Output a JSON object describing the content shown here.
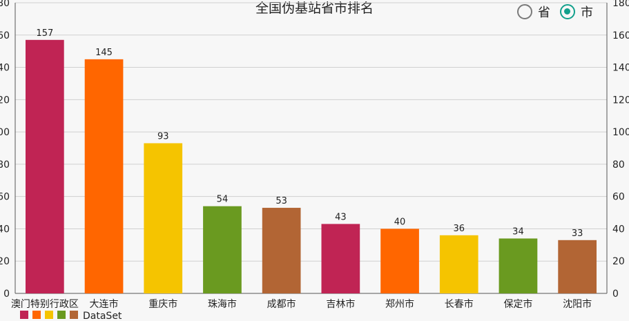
{
  "chart_data": {
    "type": "bar",
    "title": "全国伪基站省市排名",
    "categories": [
      "澳门特别行政区",
      "大连市",
      "重庆市",
      "珠海市",
      "成都市",
      "吉林市",
      "郑州市",
      "长春市",
      "保定市",
      "沈阳市"
    ],
    "series": [
      {
        "name": "DataSet",
        "values": [
          157,
          145,
          93,
          54,
          53,
          43,
          40,
          36,
          34,
          33
        ]
      }
    ],
    "bar_colors": [
      "#c02454",
      "#ff6600",
      "#f5c400",
      "#6a9a20",
      "#b26534"
    ],
    "ylim": [
      0,
      180
    ],
    "yticks": [
      0,
      20,
      40,
      60,
      80,
      100,
      120,
      140,
      160,
      180
    ],
    "grid": true,
    "legend": {
      "position": "bottom-left",
      "label": "DataSet"
    }
  },
  "radio": {
    "options": [
      {
        "label": "省",
        "checked": false
      },
      {
        "label": "市",
        "checked": true
      }
    ],
    "accent_color": "#12a08c"
  }
}
